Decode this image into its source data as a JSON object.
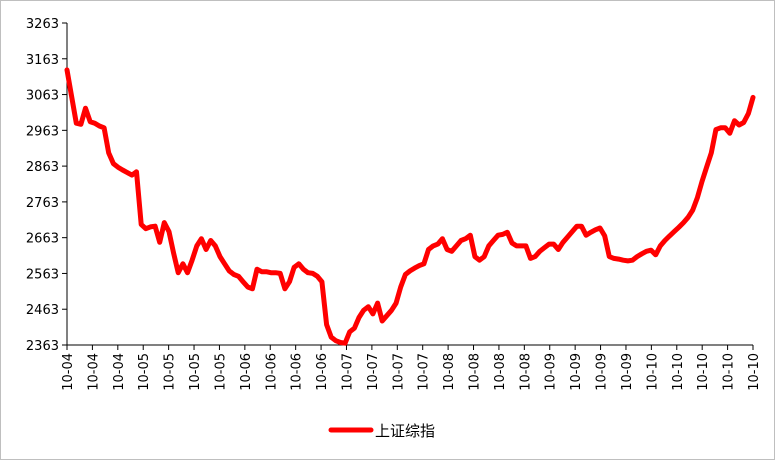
{
  "chart_data": {
    "type": "line",
    "title": "",
    "xlabel": "",
    "ylabel": "",
    "ylim": [
      2363,
      3263
    ],
    "y_ticks": [
      3263,
      3163,
      3063,
      2963,
      2863,
      2763,
      2663,
      2563,
      2463,
      2363
    ],
    "x_tick_labels": [
      "10-04",
      "10-04",
      "10-04",
      "10-05",
      "10-05",
      "10-05",
      "10-05",
      "10-06",
      "10-06",
      "10-06",
      "10-06",
      "10-07",
      "10-07",
      "10-07",
      "10-07",
      "10-08",
      "10-08",
      "10-08",
      "10-08",
      "10-09",
      "10-09",
      "10-09",
      "10-09",
      "10-10",
      "10-10",
      "10-10",
      "10-10",
      "10-10"
    ],
    "grid": false,
    "legend_position": "bottom",
    "series": [
      {
        "name": "上证综指",
        "color": "#ff0000",
        "values": [
          3132,
          3058,
          2983,
          2980,
          3025,
          2987,
          2983,
          2975,
          2970,
          2900,
          2870,
          2860,
          2852,
          2845,
          2838,
          2847,
          2700,
          2688,
          2693,
          2695,
          2650,
          2705,
          2680,
          2620,
          2565,
          2590,
          2565,
          2600,
          2640,
          2660,
          2630,
          2655,
          2640,
          2610,
          2590,
          2570,
          2560,
          2555,
          2540,
          2525,
          2520,
          2575,
          2568,
          2568,
          2565,
          2565,
          2563,
          2520,
          2540,
          2580,
          2590,
          2575,
          2565,
          2563,
          2555,
          2540,
          2420,
          2385,
          2375,
          2370,
          2368,
          2400,
          2410,
          2440,
          2460,
          2470,
          2450,
          2480,
          2430,
          2445,
          2460,
          2480,
          2525,
          2560,
          2570,
          2578,
          2585,
          2590,
          2630,
          2640,
          2645,
          2660,
          2630,
          2625,
          2640,
          2655,
          2660,
          2670,
          2610,
          2600,
          2610,
          2640,
          2655,
          2670,
          2672,
          2678,
          2648,
          2640,
          2640,
          2640,
          2605,
          2610,
          2625,
          2635,
          2645,
          2645,
          2630,
          2650,
          2665,
          2680,
          2695,
          2695,
          2670,
          2678,
          2685,
          2690,
          2668,
          2610,
          2605,
          2603,
          2600,
          2598,
          2600,
          2610,
          2618,
          2625,
          2628,
          2615,
          2640,
          2655,
          2668,
          2680,
          2692,
          2705,
          2720,
          2740,
          2775,
          2820,
          2860,
          2900,
          2965,
          2970,
          2970,
          2955,
          2990,
          2978,
          2985,
          3010,
          3055
        ]
      }
    ]
  }
}
